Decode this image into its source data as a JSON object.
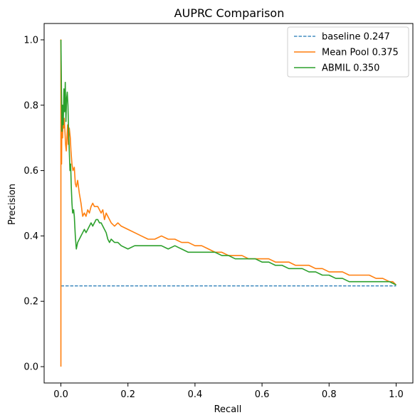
{
  "chart_data": {
    "type": "line",
    "title": "AUPRC Comparison",
    "xlabel": "Recall",
    "ylabel": "Precision",
    "xlim": [
      -0.05,
      1.05
    ],
    "ylim": [
      -0.05,
      1.05
    ],
    "xticks": [
      0.0,
      0.2,
      0.4,
      0.6,
      0.8,
      1.0
    ],
    "xtick_labels": [
      "0.0",
      "0.2",
      "0.4",
      "0.6",
      "0.8",
      "1.0"
    ],
    "yticks": [
      0.0,
      0.2,
      0.4,
      0.6,
      0.8,
      1.0
    ],
    "ytick_labels": [
      "0.0",
      "0.2",
      "0.4",
      "0.6",
      "0.8",
      "1.0"
    ],
    "grid": false,
    "legend_position": "top-right",
    "series": [
      {
        "name": "baseline 0.247",
        "color": "#1f77b4",
        "style": "dashed",
        "x": [
          0.0,
          1.0
        ],
        "y": [
          0.247,
          0.247
        ]
      },
      {
        "name": "Mean Pool 0.375",
        "color": "#ff7f0e",
        "style": "solid",
        "x": [
          0.0,
          0.0,
          0.002,
          0.003,
          0.004,
          0.005,
          0.006,
          0.008,
          0.01,
          0.012,
          0.014,
          0.016,
          0.018,
          0.02,
          0.022,
          0.025,
          0.028,
          0.03,
          0.033,
          0.036,
          0.04,
          0.043,
          0.046,
          0.05,
          0.055,
          0.06,
          0.065,
          0.07,
          0.075,
          0.08,
          0.085,
          0.09,
          0.095,
          0.1,
          0.105,
          0.11,
          0.115,
          0.12,
          0.125,
          0.13,
          0.135,
          0.14,
          0.15,
          0.16,
          0.17,
          0.18,
          0.2,
          0.22,
          0.24,
          0.26,
          0.28,
          0.3,
          0.32,
          0.34,
          0.36,
          0.38,
          0.4,
          0.42,
          0.44,
          0.46,
          0.48,
          0.5,
          0.52,
          0.54,
          0.56,
          0.58,
          0.6,
          0.62,
          0.64,
          0.66,
          0.68,
          0.7,
          0.72,
          0.74,
          0.76,
          0.78,
          0.8,
          0.82,
          0.84,
          0.86,
          0.88,
          0.9,
          0.92,
          0.94,
          0.96,
          0.98,
          0.99,
          1.0
        ],
        "y": [
          0.0,
          1.0,
          0.62,
          0.78,
          0.72,
          0.7,
          0.75,
          0.73,
          0.76,
          0.72,
          0.68,
          0.66,
          0.7,
          0.74,
          0.68,
          0.73,
          0.7,
          0.66,
          0.62,
          0.6,
          0.61,
          0.56,
          0.55,
          0.57,
          0.53,
          0.5,
          0.46,
          0.47,
          0.46,
          0.48,
          0.47,
          0.49,
          0.5,
          0.49,
          0.49,
          0.49,
          0.48,
          0.47,
          0.48,
          0.45,
          0.47,
          0.46,
          0.44,
          0.43,
          0.44,
          0.43,
          0.42,
          0.41,
          0.4,
          0.39,
          0.39,
          0.4,
          0.39,
          0.39,
          0.38,
          0.38,
          0.37,
          0.37,
          0.36,
          0.35,
          0.35,
          0.34,
          0.34,
          0.34,
          0.33,
          0.33,
          0.33,
          0.33,
          0.32,
          0.32,
          0.32,
          0.31,
          0.31,
          0.31,
          0.3,
          0.3,
          0.29,
          0.29,
          0.29,
          0.28,
          0.28,
          0.28,
          0.28,
          0.27,
          0.27,
          0.26,
          0.26,
          0.25
        ]
      },
      {
        "name": "ABMIL 0.350",
        "color": "#2ca02c",
        "style": "solid",
        "x": [
          0.0,
          0.0,
          0.003,
          0.005,
          0.007,
          0.009,
          0.011,
          0.013,
          0.015,
          0.017,
          0.019,
          0.021,
          0.023,
          0.025,
          0.027,
          0.029,
          0.031,
          0.033,
          0.035,
          0.038,
          0.04,
          0.043,
          0.046,
          0.05,
          0.055,
          0.06,
          0.065,
          0.07,
          0.075,
          0.08,
          0.085,
          0.09,
          0.095,
          0.1,
          0.105,
          0.11,
          0.115,
          0.12,
          0.125,
          0.13,
          0.135,
          0.14,
          0.145,
          0.15,
          0.16,
          0.17,
          0.18,
          0.2,
          0.22,
          0.24,
          0.26,
          0.28,
          0.3,
          0.32,
          0.34,
          0.36,
          0.38,
          0.4,
          0.42,
          0.44,
          0.46,
          0.48,
          0.5,
          0.52,
          0.54,
          0.56,
          0.58,
          0.6,
          0.62,
          0.64,
          0.66,
          0.68,
          0.7,
          0.72,
          0.74,
          0.76,
          0.78,
          0.8,
          0.82,
          0.84,
          0.86,
          0.88,
          0.9,
          0.92,
          0.94,
          0.96,
          0.98,
          1.0
        ],
        "y": [
          1.0,
          1.0,
          0.72,
          0.8,
          0.74,
          0.85,
          0.78,
          0.87,
          0.75,
          0.82,
          0.84,
          0.8,
          0.72,
          0.66,
          0.6,
          0.62,
          0.55,
          0.5,
          0.47,
          0.48,
          0.46,
          0.4,
          0.36,
          0.38,
          0.39,
          0.4,
          0.41,
          0.42,
          0.41,
          0.42,
          0.43,
          0.44,
          0.43,
          0.44,
          0.45,
          0.45,
          0.44,
          0.44,
          0.43,
          0.42,
          0.41,
          0.39,
          0.38,
          0.39,
          0.38,
          0.38,
          0.37,
          0.36,
          0.37,
          0.37,
          0.37,
          0.37,
          0.37,
          0.36,
          0.37,
          0.36,
          0.35,
          0.35,
          0.35,
          0.35,
          0.35,
          0.34,
          0.34,
          0.33,
          0.33,
          0.33,
          0.33,
          0.32,
          0.32,
          0.31,
          0.31,
          0.3,
          0.3,
          0.3,
          0.29,
          0.29,
          0.28,
          0.28,
          0.27,
          0.27,
          0.26,
          0.26,
          0.26,
          0.26,
          0.26,
          0.26,
          0.26,
          0.25
        ]
      }
    ]
  }
}
